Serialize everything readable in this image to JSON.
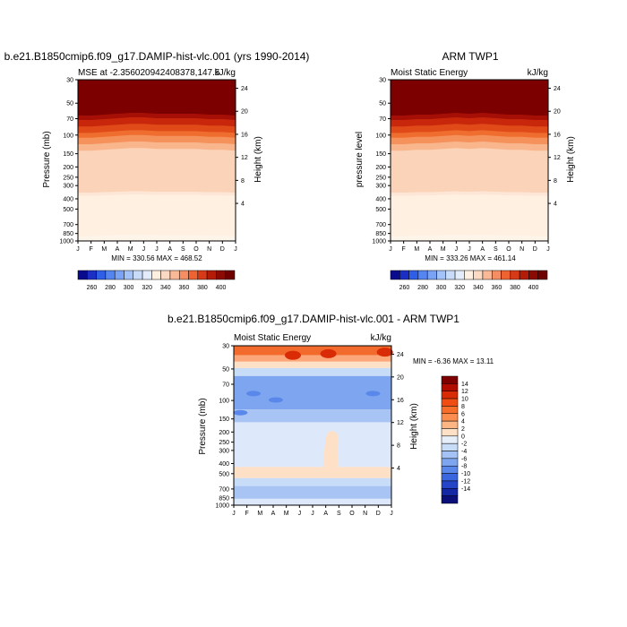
{
  "chart_data": [
    {
      "type": "heatmap",
      "title": "b.e21.B1850cmip6.f09_g17.DAMIP-hist-vlc.001 (yrs 1990-2014)",
      "left_string": "MSE at -2.356020942408378,147.5",
      "right_string": "kJ/kg",
      "ylabel": "Pressure (mb)",
      "y2label": "Height (km)",
      "min_max": "MIN = 330.56 MAX = 468.52",
      "x_ticks": [
        "J",
        "F",
        "M",
        "A",
        "M",
        "J",
        "J",
        "A",
        "S",
        "O",
        "N",
        "D",
        "J"
      ],
      "y_ticks": [
        30,
        50,
        70,
        100,
        150,
        200,
        250,
        300,
        400,
        500,
        700,
        850,
        1000
      ],
      "height_ticks": [
        4,
        8,
        12,
        16,
        20,
        24
      ],
      "colorbar": {
        "labels": [
          "260",
          "280",
          "300",
          "320",
          "340",
          "360",
          "380",
          "400"
        ],
        "colors": [
          "#0a0a8c",
          "#1c2fc4",
          "#2f5fe6",
          "#5585f0",
          "#7aa3f5",
          "#a3c2f8",
          "#c8dbf9",
          "#e2ecfa",
          "#fdf0e0",
          "#fbd9c2",
          "#f9b896",
          "#f58f63",
          "#ef6333",
          "#d73a16",
          "#b31c06",
          "#8b0a02",
          "#6e0000"
        ]
      },
      "layers": [
        {
          "label": "30",
          "boundary": [
            61,
            61,
            61,
            61,
            61,
            61,
            61,
            61,
            61,
            61,
            61,
            61,
            61
          ]
        },
        {
          "label": "50",
          "boundary": [
            82,
            82,
            81,
            80,
            79,
            79,
            80,
            80,
            80,
            80,
            81,
            81,
            82
          ]
        },
        {
          "label": "70",
          "boundary": [
            90,
            90,
            89,
            88,
            87,
            87,
            88,
            88,
            88,
            88,
            89,
            89,
            90
          ]
        },
        {
          "label": "100",
          "boundary": [
            96,
            96,
            95,
            94,
            93,
            93,
            94,
            94,
            94,
            94,
            95,
            95,
            96
          ]
        },
        {
          "label": "150",
          "boundary": [
            104,
            104,
            103,
            102,
            101,
            101,
            102,
            102,
            102,
            102,
            103,
            103,
            104
          ]
        },
        {
          "label": "200",
          "boundary": [
            113,
            113,
            112,
            111,
            110,
            110,
            111,
            111,
            111,
            111,
            112,
            112,
            113
          ]
        },
        {
          "label": "250",
          "boundary": [
            119,
            119,
            118,
            117,
            116,
            116,
            117,
            117,
            117,
            117,
            118,
            118,
            119
          ]
        },
        {
          "label": "300",
          "boundary": [
            129,
            129,
            128,
            127,
            126,
            126,
            127,
            127,
            127,
            127,
            128,
            128,
            129
          ]
        },
        {
          "label": "400",
          "boundary": [
            132,
            132,
            131,
            130,
            129,
            129,
            130,
            130,
            130,
            130,
            131,
            131,
            132
          ]
        },
        {
          "label": "500",
          "boundary": [
            148,
            148,
            147,
            146,
            145,
            145,
            146,
            146,
            146,
            146,
            147,
            147,
            148
          ]
        },
        {
          "label": "700",
          "boundary": [
            160,
            160,
            159,
            158,
            157,
            157,
            158,
            158,
            158,
            158,
            159,
            159,
            160
          ]
        },
        {
          "label": "850",
          "boundary": [
            171,
            171,
            170,
            169,
            168,
            168,
            169,
            169,
            169,
            169,
            170,
            170,
            171
          ]
        },
        {
          "label": "1000",
          "boundary": [
            174,
            174,
            173,
            172,
            171,
            171,
            172,
            172,
            172,
            172,
            173,
            173,
            174
          ]
        }
      ]
    },
    {
      "type": "heatmap",
      "title": "ARM TWP1",
      "left_string": "Moist Static Energy",
      "right_string": "kJ/kg",
      "ylabel": "pressure level",
      "y2label": "Height (km)",
      "min_max": "MIN = 333.26 MAX = 461.14",
      "x_ticks": [
        "J",
        "F",
        "M",
        "A",
        "M",
        "J",
        "J",
        "A",
        "S",
        "O",
        "N",
        "D",
        "J"
      ],
      "y_ticks": [
        30,
        50,
        70,
        100,
        150,
        200,
        250,
        300,
        400,
        500,
        700,
        850,
        1000
      ],
      "height_ticks": [
        4,
        8,
        12,
        16,
        20,
        24
      ],
      "colorbar": {
        "labels": [
          "260",
          "280",
          "300",
          "320",
          "340",
          "360",
          "380",
          "400"
        ],
        "colors": [
          "#0a0a8c",
          "#1c2fc4",
          "#2f5fe6",
          "#5585f0",
          "#7aa3f5",
          "#a3c2f8",
          "#c8dbf9",
          "#e2ecfa",
          "#fdf0e0",
          "#fbd9c2",
          "#f9b896",
          "#f58f63",
          "#ef6333",
          "#d73a16",
          "#b31c06",
          "#8b0a02",
          "#6e0000"
        ]
      }
    },
    {
      "type": "heatmap",
      "title": "b.e21.B1850cmip6.f09_g17.DAMIP-hist-vlc.001 - ARM TWP1",
      "left_string": "Moist Static Energy",
      "right_string": "kJ/kg",
      "ylabel": "Pressure (mb)",
      "y2label": "Height (km)",
      "min_max": "MIN = -6.36 MAX = 13.11",
      "x_ticks": [
        "J",
        "F",
        "M",
        "A",
        "M",
        "J",
        "J",
        "A",
        "S",
        "O",
        "N",
        "D",
        "J"
      ],
      "y_ticks": [
        30,
        50,
        70,
        100,
        150,
        200,
        250,
        300,
        400,
        500,
        700,
        850,
        1000
      ],
      "height_ticks": [
        4,
        8,
        12,
        16,
        20,
        24
      ],
      "colorbar": {
        "labels": [
          "14",
          "12",
          "10",
          "8",
          "6",
          "4",
          "2",
          "0",
          "-2",
          "-4",
          "-6",
          "-8",
          "-10",
          "-12",
          "-14"
        ],
        "colors": [
          "#7f0000",
          "#b20c00",
          "#d92b06",
          "#f14d12",
          "#f76d2a",
          "#fb8e4f",
          "#fdb683",
          "#fde0c6",
          "#e6eefa",
          "#c7dcf7",
          "#a4c2f5",
          "#7ea6f0",
          "#5a87ea",
          "#3a67e0",
          "#2445c8",
          "#1428a5",
          "#0b0f7a"
        ]
      }
    }
  ]
}
